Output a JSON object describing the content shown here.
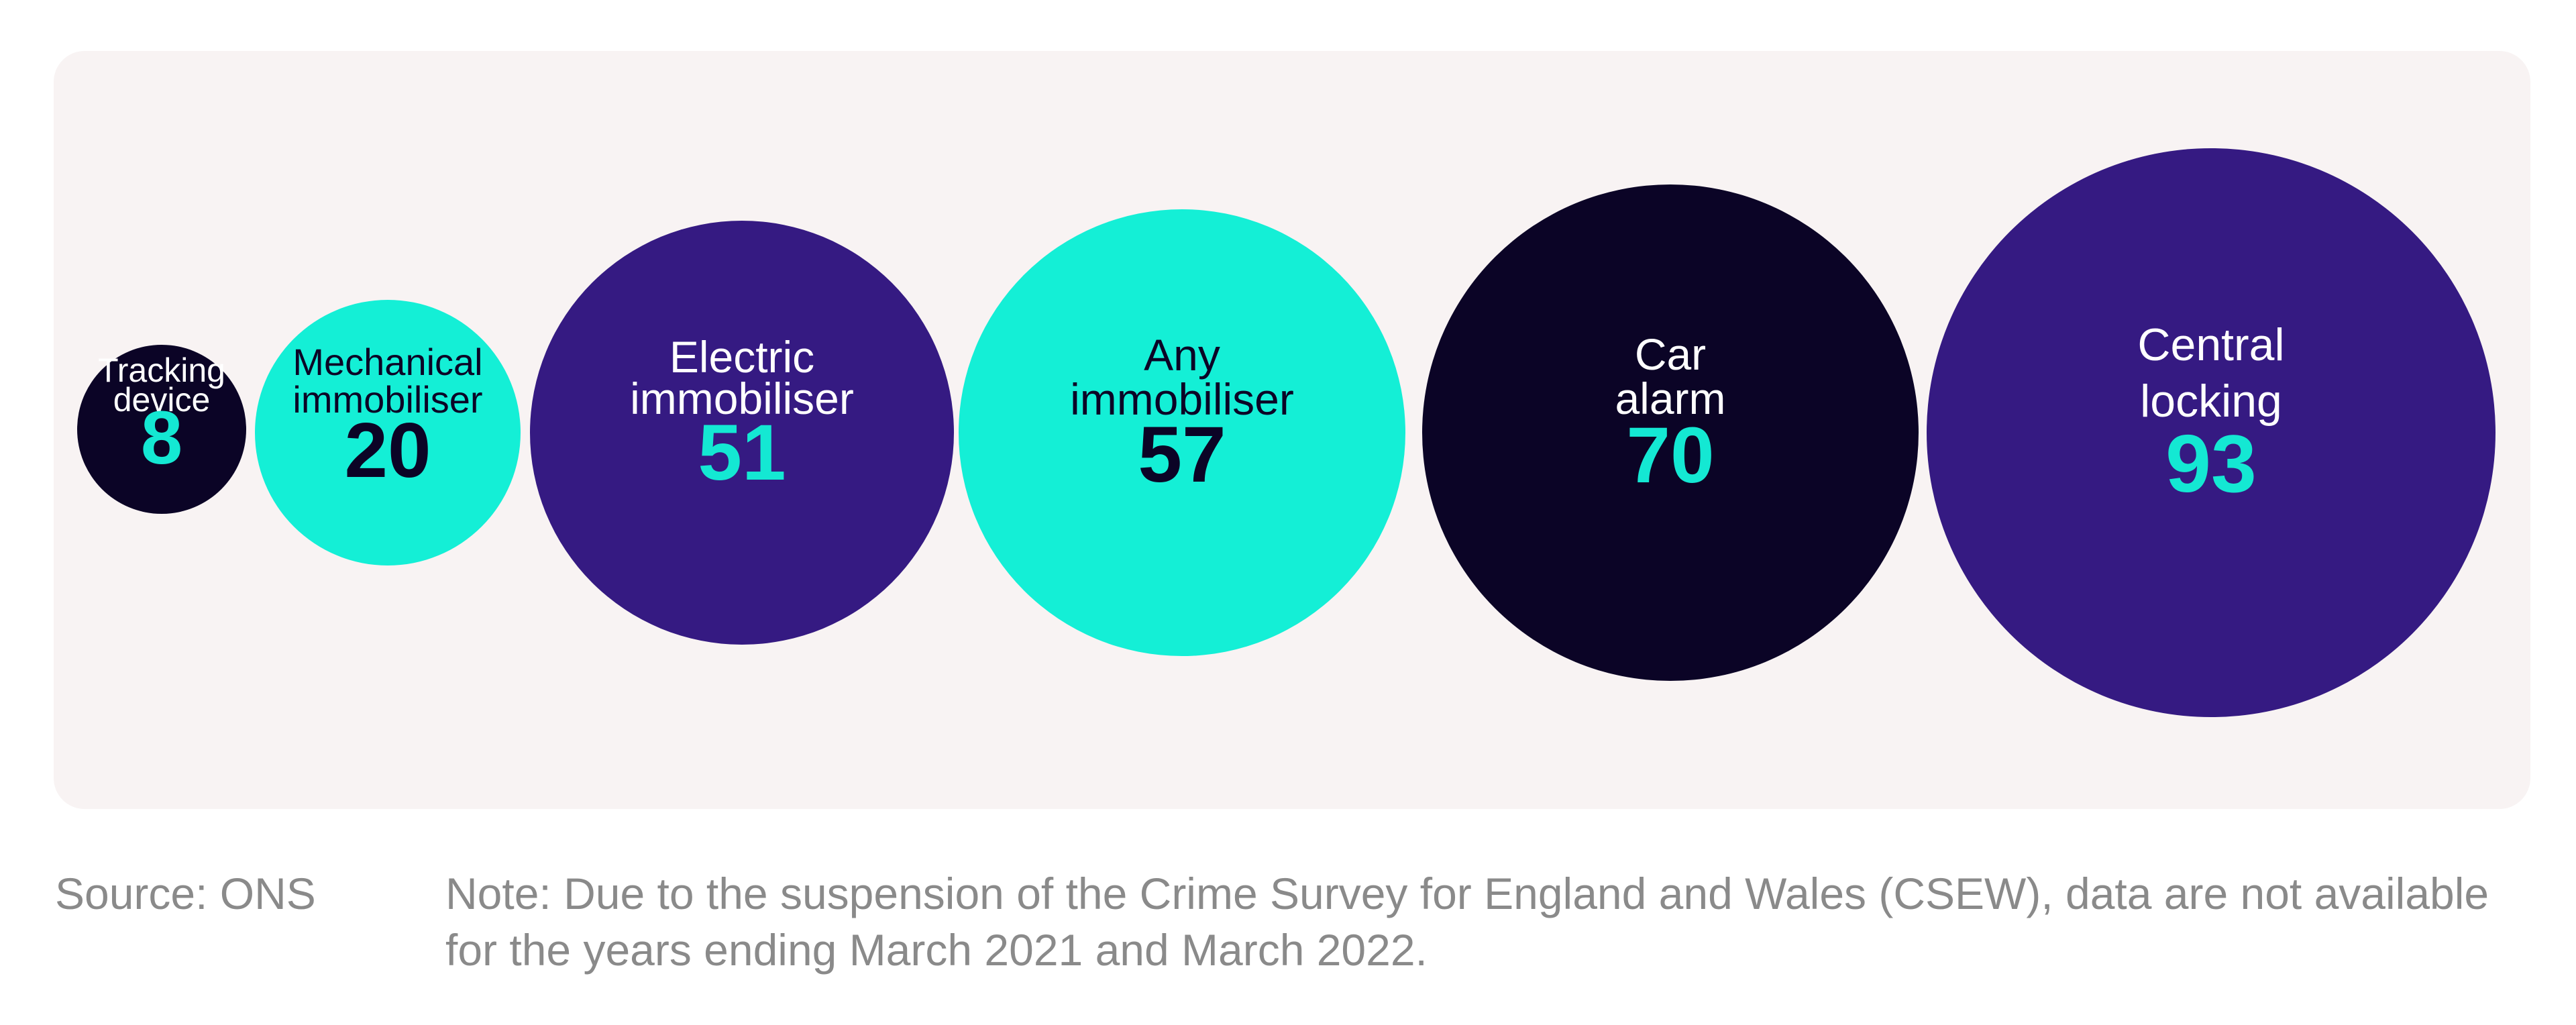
{
  "chart_data": {
    "type": "bubble",
    "categories": [
      "Tracking device",
      "Mechanical immobiliser",
      "Electric immobiliser",
      "Any immobiliser",
      "Car alarm",
      "Central locking"
    ],
    "values": [
      8,
      20,
      51,
      57,
      70,
      93
    ],
    "bubbles": [
      {
        "label_lines": [
          "Tracking",
          "device"
        ],
        "value": "8",
        "fill": "#0b0426",
        "text_color": "#ffffff",
        "value_color": "#14e8d3"
      },
      {
        "label_lines": [
          "Mechanical",
          "immobiliser"
        ],
        "value": "20",
        "fill": "#14efd6",
        "text_color": "#0b0426",
        "value_color": "#0b0426"
      },
      {
        "label_lines": [
          "Electric",
          "immobiliser"
        ],
        "value": "51",
        "fill": "#351a82",
        "text_color": "#ffffff",
        "value_color": "#14e8d3"
      },
      {
        "label_lines": [
          "Any",
          "immobiliser"
        ],
        "value": "57",
        "fill": "#14efd6",
        "text_color": "#0b0426",
        "value_color": "#0b0426"
      },
      {
        "label_lines": [
          "Car",
          "alarm"
        ],
        "value": "70",
        "fill": "#0b0426",
        "text_color": "#ffffff",
        "value_color": "#14e8d3"
      },
      {
        "label_lines": [
          "Central",
          "locking"
        ],
        "value": "93",
        "fill": "#351a82",
        "text_color": "#ffffff",
        "value_color": "#14e8d3"
      }
    ]
  },
  "footer": {
    "source": "Source: ONS",
    "note": "Note: Due to the suspension of the Crime Survey for England and Wales (CSEW), data are not available for the years ending March 2021 and March 2022."
  }
}
